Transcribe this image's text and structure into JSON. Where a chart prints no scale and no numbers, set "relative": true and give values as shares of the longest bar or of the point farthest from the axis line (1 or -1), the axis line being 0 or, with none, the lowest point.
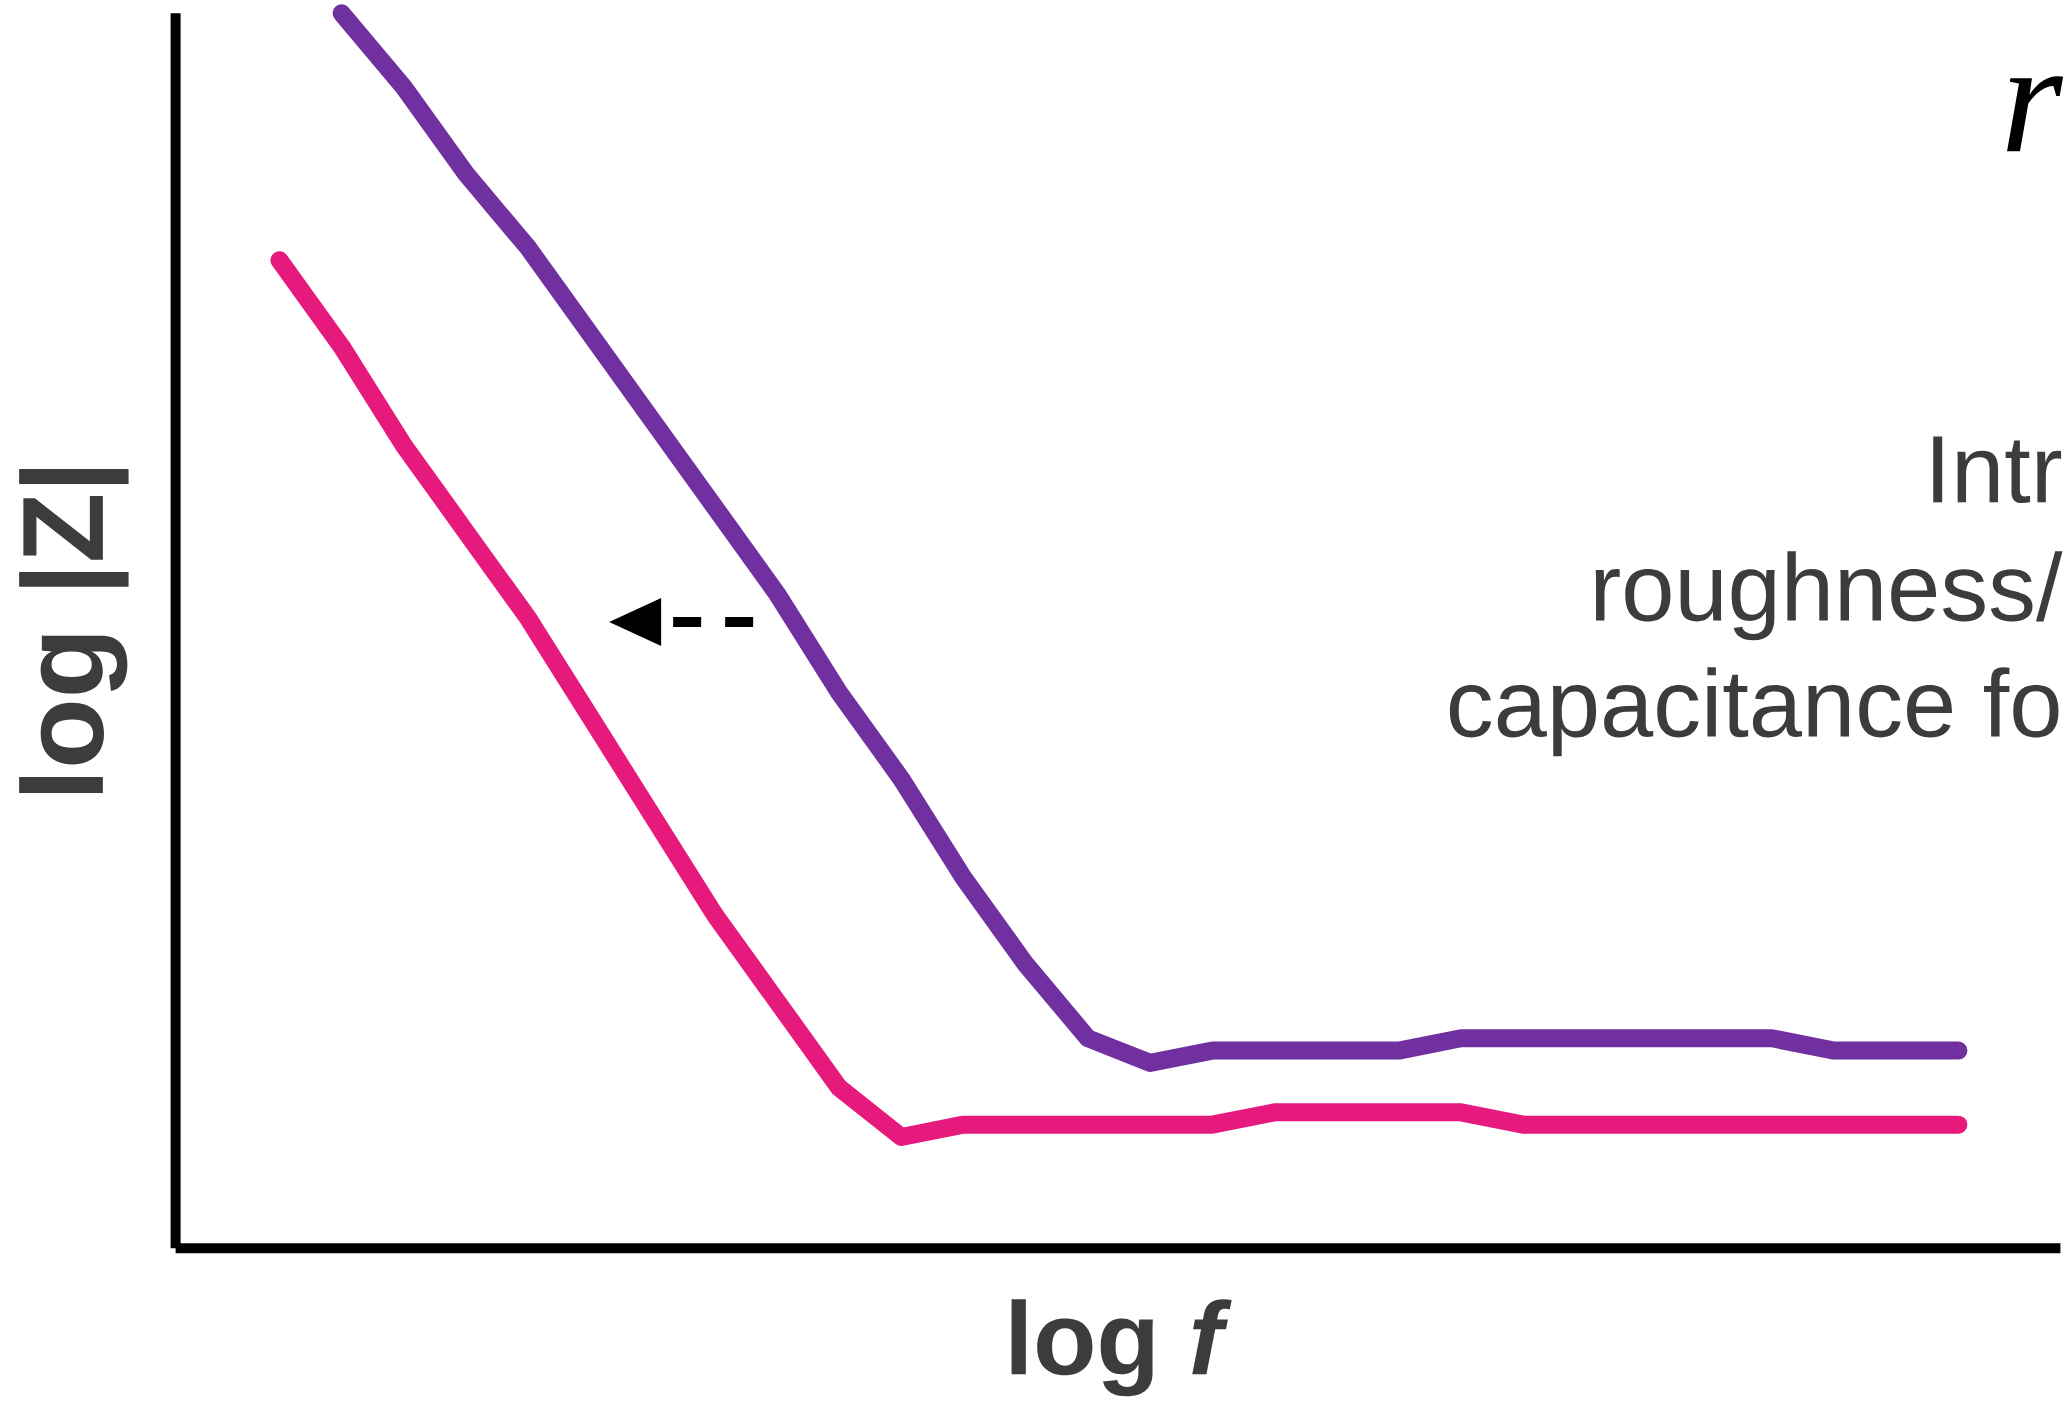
{
  "chart_data": {
    "type": "line",
    "relative": true,
    "xlabel": "log *f*",
    "ylabel": "log |Z|",
    "annotations": [
      "r",
      "Intr",
      "roughness/",
      "capacitance fo"
    ],
    "categories": [
      null,
      null,
      null,
      null,
      null,
      null,
      null,
      null,
      null,
      null,
      null,
      null,
      null,
      null,
      null,
      null,
      null,
      null,
      null,
      null,
      null,
      null,
      null,
      null,
      null,
      null,
      null,
      null
    ],
    "series": [
      {
        "color": "#7030a0",
        "values": [
          null,
          1.0,
          0.94,
          0.87,
          0.81,
          0.74,
          0.67,
          0.6,
          0.53,
          0.45,
          0.38,
          0.3,
          0.23,
          0.17,
          0.15,
          0.16,
          0.16,
          0.16,
          0.16,
          0.17,
          0.17,
          0.17,
          0.17,
          0.17,
          0.17,
          0.16,
          0.16,
          0.16
        ]
      },
      {
        "color": "#e6197d",
        "values": [
          0.8,
          0.73,
          0.65,
          0.58,
          0.51,
          0.43,
          0.35,
          0.27,
          0.2,
          0.13,
          0.09,
          0.1,
          0.1,
          0.1,
          0.1,
          0.1,
          0.11,
          0.11,
          0.11,
          0.11,
          0.1,
          0.1,
          0.1,
          0.1,
          0.1,
          0.1,
          0.1,
          0.1
        ]
      }
    ]
  }
}
